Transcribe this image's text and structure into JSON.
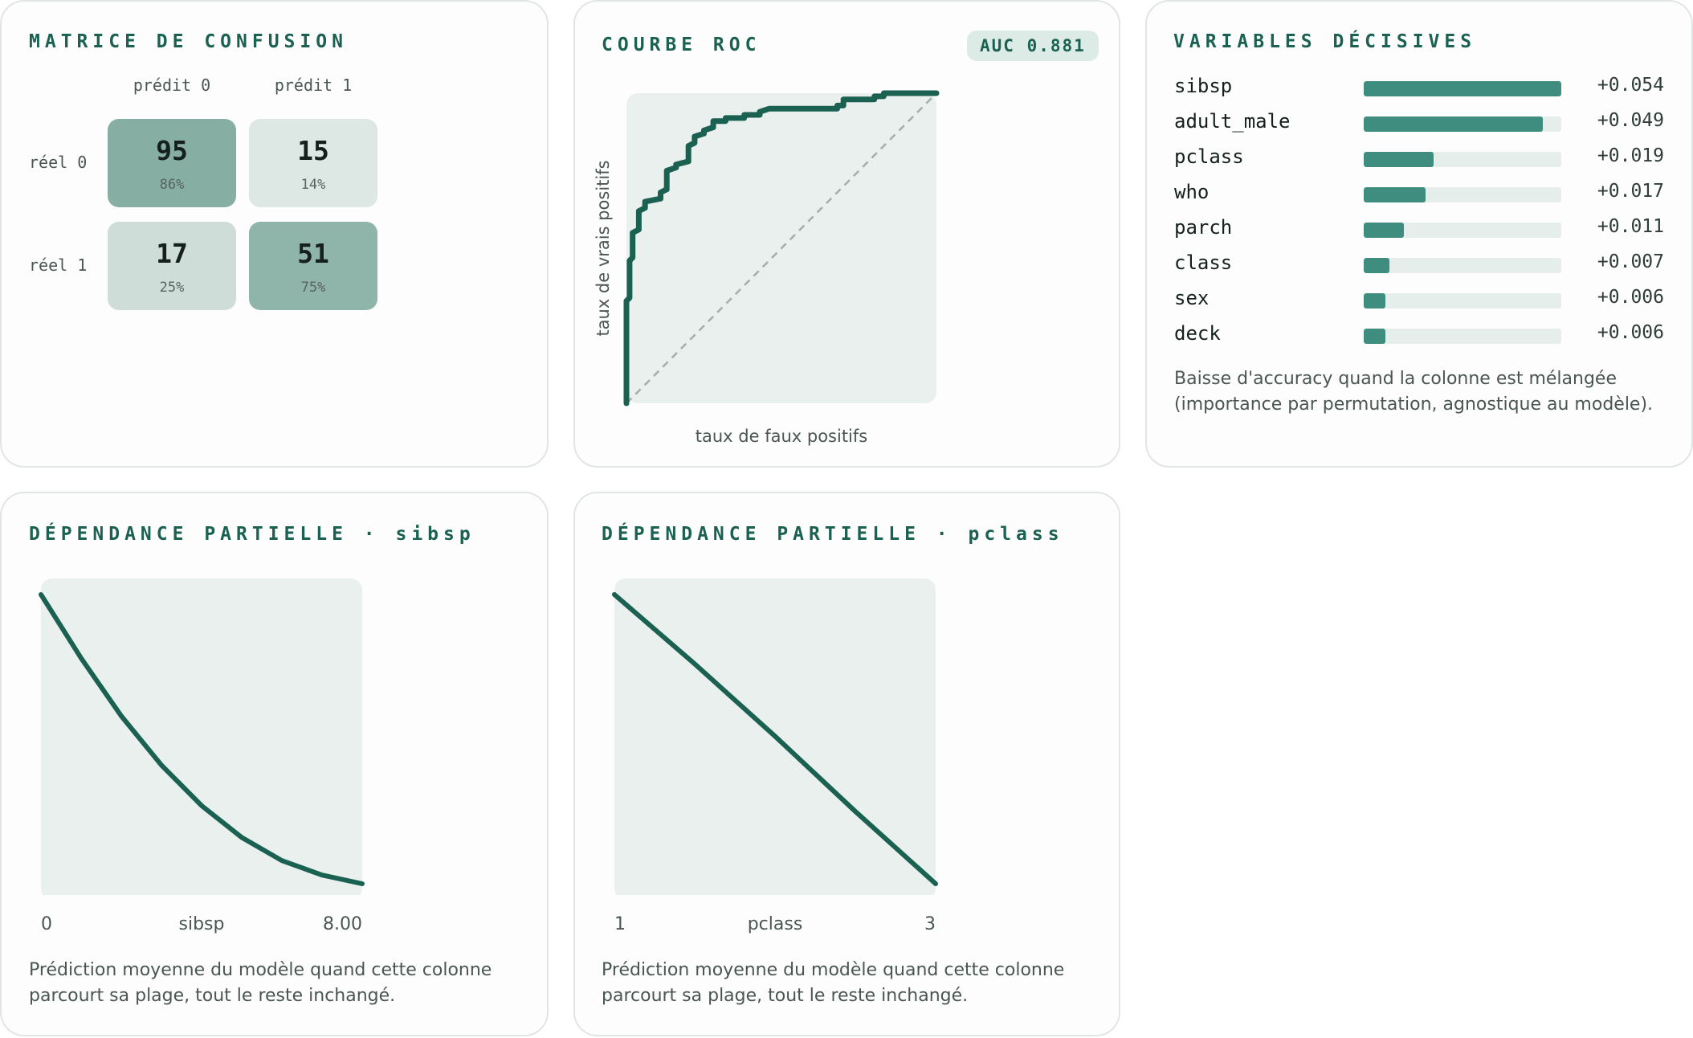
{
  "accent": "#1b6152",
  "plot_bg": "#e9f0ed",
  "confusion": {
    "title": "MATRICE DE CONFUSION",
    "col_headers": [
      "prédit 0",
      "prédit 1"
    ],
    "row_headers": [
      "réel 0",
      "réel 1"
    ],
    "cells": [
      [
        {
          "count": "95",
          "pct": "86%",
          "color": "#87aea3"
        },
        {
          "count": "15",
          "pct": "14%",
          "color": "#dde7e3"
        }
      ],
      [
        {
          "count": "17",
          "pct": "25%",
          "color": "#cfddd8"
        },
        {
          "count": "51",
          "pct": "75%",
          "color": "#8fb5aa"
        }
      ]
    ]
  },
  "roc": {
    "title": "COURBE ROC",
    "auc_label": "AUC 0.881",
    "xlabel": "taux de faux positifs",
    "ylabel": "taux de vrais positifs"
  },
  "importance": {
    "title": "VARIABLES DÉCISIVES",
    "note": "Baisse d'accuracy quand la colonne est mélangée (importance par permutation, agnostique au modèle)."
  },
  "pdp_sibsp": {
    "title": "DÉPENDANCE PARTIELLE · sibsp",
    "xmin_label": "0",
    "xlabel": "sibsp",
    "xmax_label": "8.00",
    "note": "Prédiction moyenne du modèle quand cette colonne parcourt sa plage, tout le reste inchangé."
  },
  "pdp_pclass": {
    "title": "DÉPENDANCE PARTIELLE · pclass",
    "xmin_label": "1",
    "xlabel": "pclass",
    "xmax_label": "3",
    "note": "Prédiction moyenne du modèle quand cette colonne parcourt sa plage, tout le reste inchangé."
  },
  "chart_data": [
    {
      "type": "table",
      "title": "MATRICE DE CONFUSION",
      "columns": [
        "prédit 0",
        "prédit 1"
      ],
      "rows": [
        "réel 0",
        "réel 1"
      ],
      "values": [
        [
          95,
          15
        ],
        [
          17,
          51
        ]
      ],
      "percentages": [
        [
          86,
          14
        ],
        [
          25,
          75
        ]
      ]
    },
    {
      "type": "line",
      "title": "COURBE ROC",
      "xlabel": "taux de faux positifs",
      "ylabel": "taux de vrais positifs",
      "xlim": [
        0,
        1
      ],
      "ylim": [
        0,
        1
      ],
      "annotation": "AUC 0.881",
      "series": [
        {
          "x": [
            0,
            0,
            0.01,
            0.01,
            0.02,
            0.02,
            0.04,
            0.04,
            0.06,
            0.06,
            0.11,
            0.11,
            0.13,
            0.13,
            0.16,
            0.16,
            0.2,
            0.2,
            0.22,
            0.22,
            0.25,
            0.25,
            0.28,
            0.28,
            0.32,
            0.32,
            0.38,
            0.38,
            0.43,
            0.43,
            0.46,
            0.46,
            0.68,
            0.68,
            0.7,
            0.7,
            0.8,
            0.8,
            0.83,
            0.83,
            1.0
          ],
          "y": [
            0,
            0.33,
            0.34,
            0.46,
            0.47,
            0.55,
            0.56,
            0.62,
            0.63,
            0.65,
            0.66,
            0.68,
            0.69,
            0.75,
            0.76,
            0.77,
            0.78,
            0.83,
            0.84,
            0.86,
            0.87,
            0.88,
            0.89,
            0.91,
            0.91,
            0.92,
            0.92,
            0.93,
            0.93,
            0.94,
            0.95,
            0.95,
            0.95,
            0.96,
            0.96,
            0.98,
            0.98,
            0.99,
            0.99,
            1.0,
            1.0
          ]
        },
        {
          "x": [
            0,
            1
          ],
          "y": [
            0,
            1
          ]
        }
      ]
    },
    {
      "type": "bar",
      "title": "VARIABLES DÉCISIVES",
      "categories": [
        "sibsp",
        "adult_male",
        "pclass",
        "who",
        "parch",
        "class",
        "sex",
        "deck"
      ],
      "values": [
        0.054,
        0.049,
        0.019,
        0.017,
        0.011,
        0.007,
        0.006,
        0.006
      ],
      "labels": [
        "+0.054",
        "+0.049",
        "+0.019",
        "+0.017",
        "+0.011",
        "+0.007",
        "+0.006",
        "+0.006"
      ],
      "xlim": [
        0,
        0.054
      ]
    },
    {
      "type": "line",
      "title": "DÉPENDANCE PARTIELLE · sibsp",
      "xlabel": "sibsp",
      "xlim": [
        0,
        8
      ],
      "series": [
        {
          "x": [
            0,
            1,
            2,
            3,
            4,
            5,
            6,
            7,
            8
          ],
          "y": [
            1.0,
            0.78,
            0.58,
            0.41,
            0.27,
            0.16,
            0.08,
            0.03,
            0.0
          ]
        }
      ]
    },
    {
      "type": "line",
      "title": "DÉPENDANCE PARTIELLE · pclass",
      "xlabel": "pclass",
      "xlim": [
        1,
        3
      ],
      "series": [
        {
          "x": [
            1,
            1.5,
            2,
            2.5,
            3
          ],
          "y": [
            1.0,
            0.76,
            0.51,
            0.25,
            0.0
          ]
        }
      ]
    }
  ]
}
